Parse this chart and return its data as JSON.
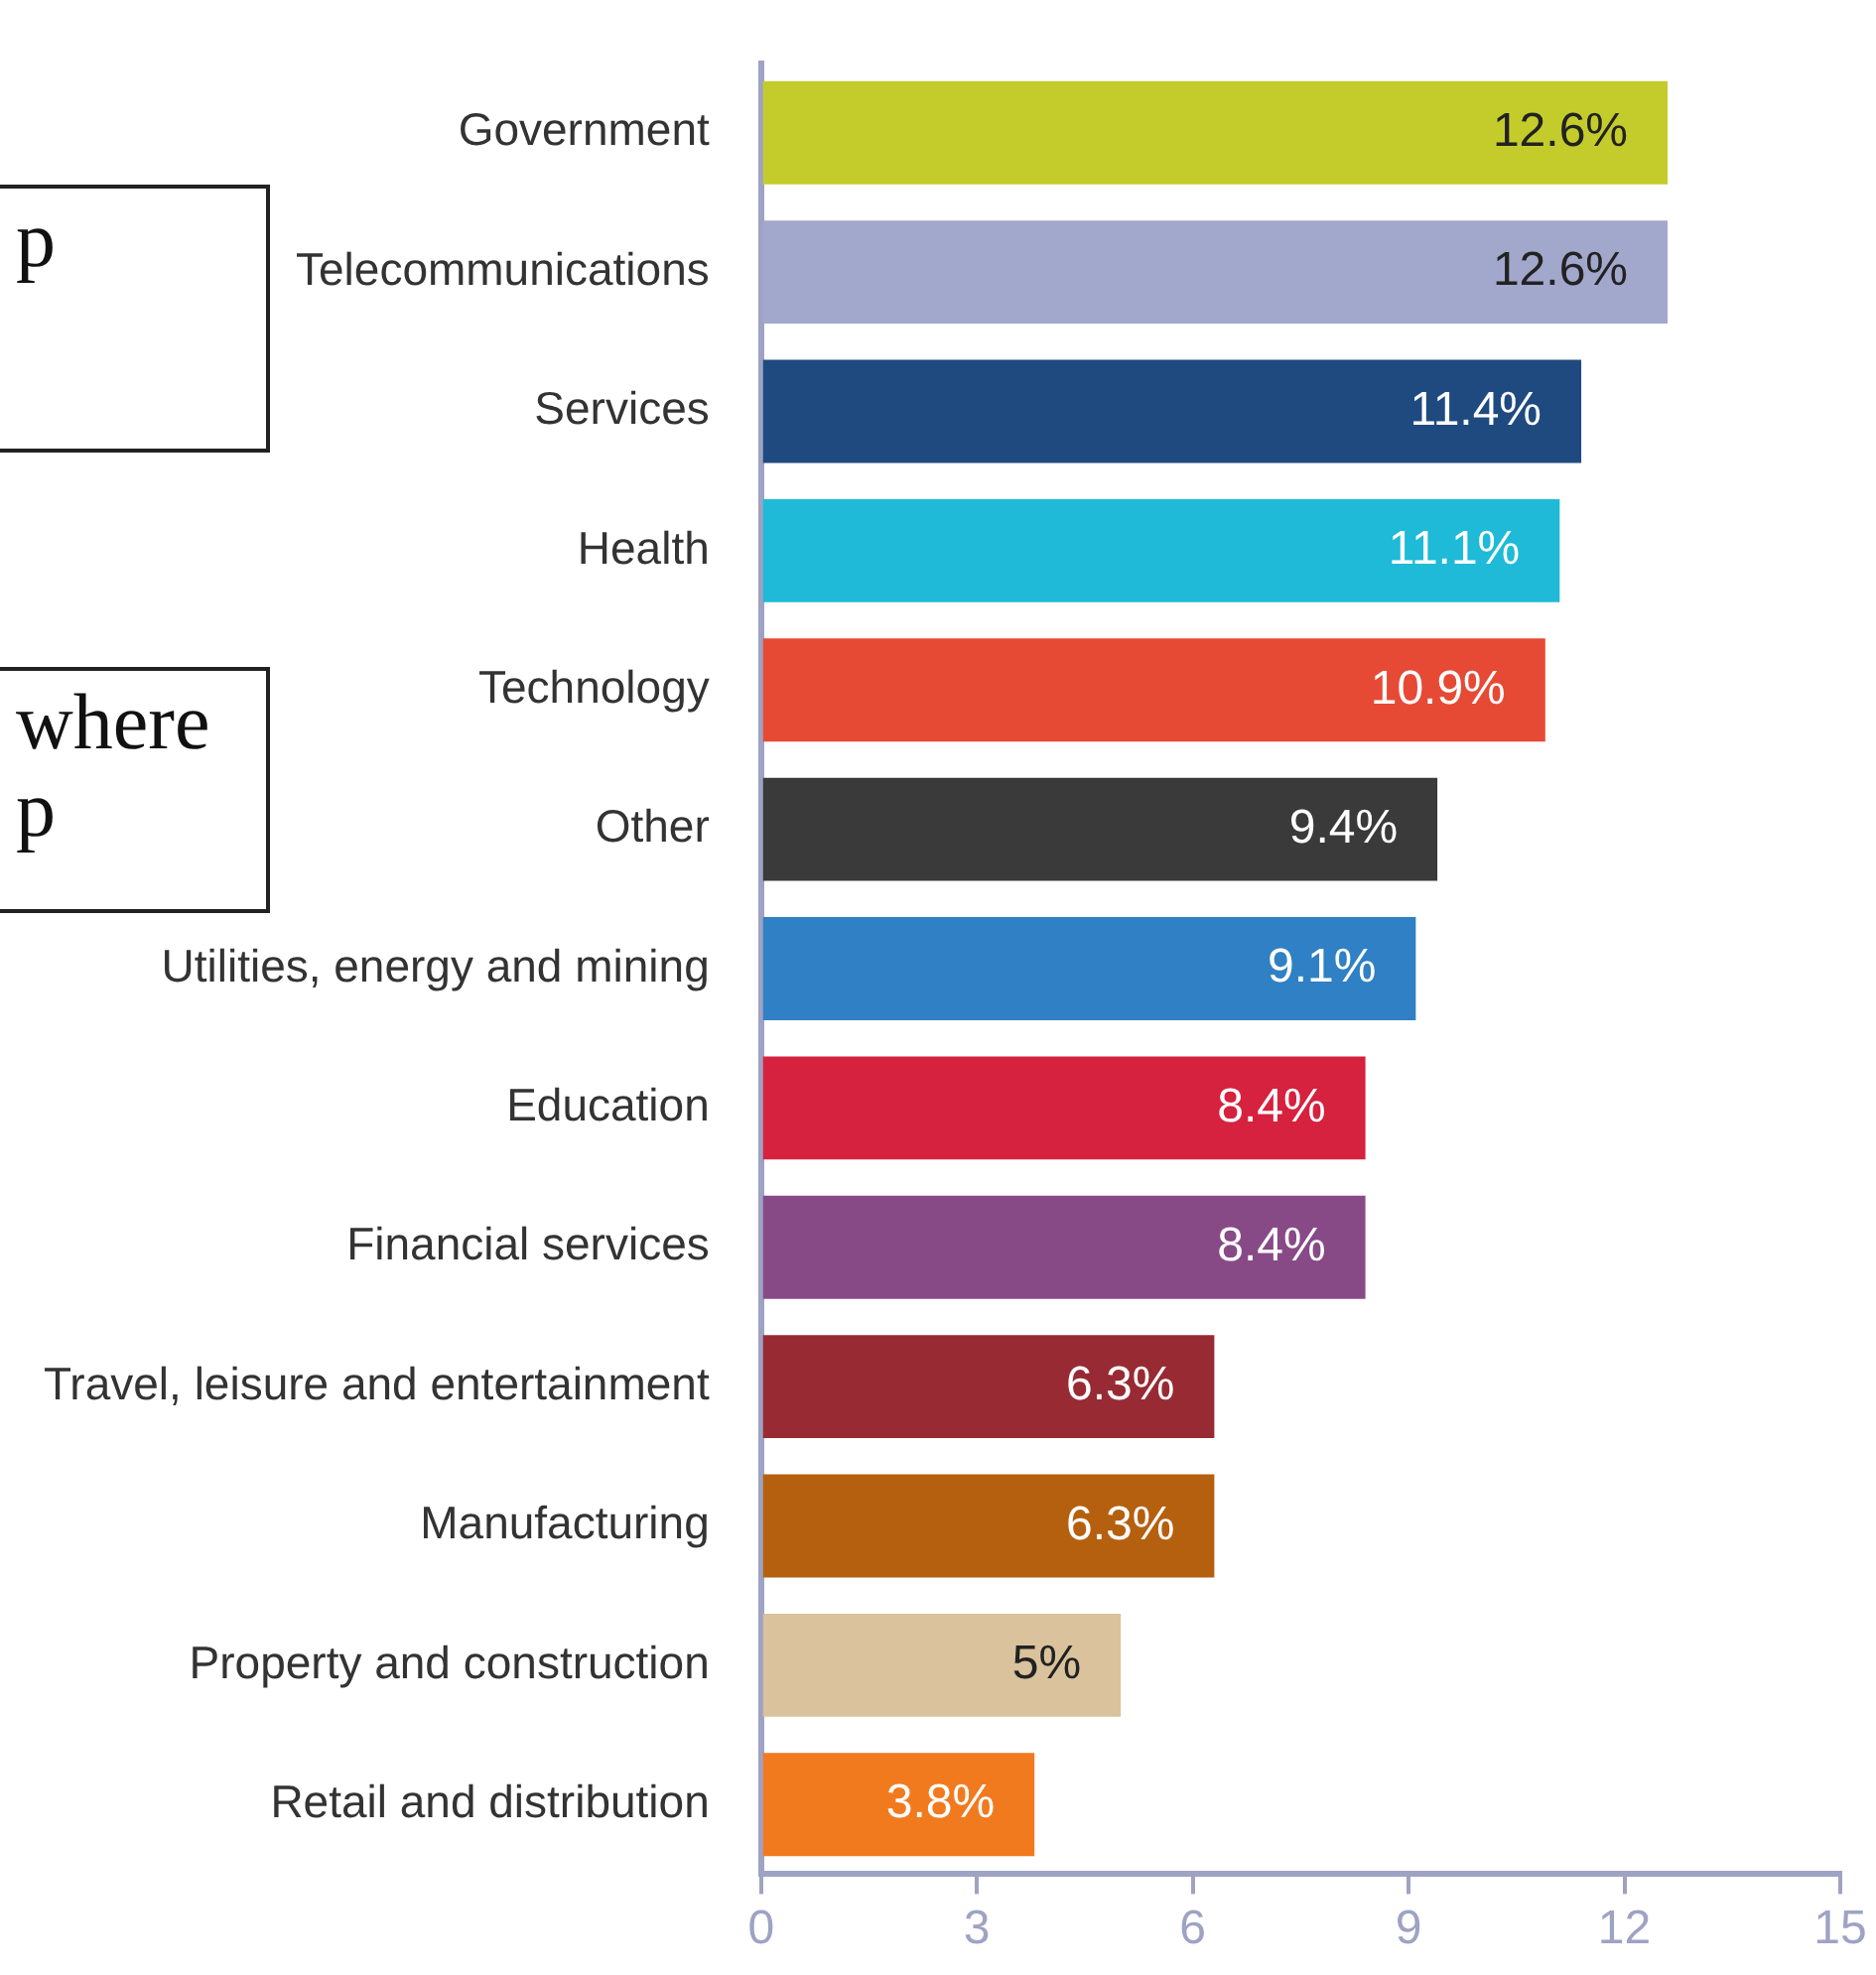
{
  "chart_data": {
    "type": "bar",
    "orientation": "horizontal",
    "categories": [
      "Government",
      "Telecommunications",
      "Services",
      "Health",
      "Technology",
      "Other",
      "Utilities, energy and mining",
      "Education",
      "Financial services",
      "Travel, leisure and entertainment",
      "Manufacturing",
      "Property and construction",
      "Retail and distribution"
    ],
    "values": [
      12.6,
      12.6,
      11.4,
      11.1,
      10.9,
      9.4,
      9.1,
      8.4,
      8.4,
      6.3,
      6.3,
      5,
      3.8
    ],
    "colors": [
      "#c4cc2c",
      "#a2a7cc",
      "#1f4a80",
      "#1ebad8",
      "#e64a34",
      "#3a3a3a",
      "#2f80c4",
      "#d6213f",
      "#874a87",
      "#982a33",
      "#b5600f",
      "#d9c29c",
      "#f27a1e"
    ],
    "value_labels": [
      "12.6%",
      "12.6%",
      "11.4%",
      "11.1%",
      "10.9%",
      "9.4%",
      "9.1%",
      "8.4%",
      "8.4%",
      "6.3%",
      "6.3%",
      "5%",
      "3.8%"
    ],
    "xlim": [
      0,
      15
    ],
    "xticks": [
      0,
      3,
      6,
      9,
      12,
      15
    ],
    "grid": false,
    "annotations": [
      "p",
      "where p"
    ]
  }
}
